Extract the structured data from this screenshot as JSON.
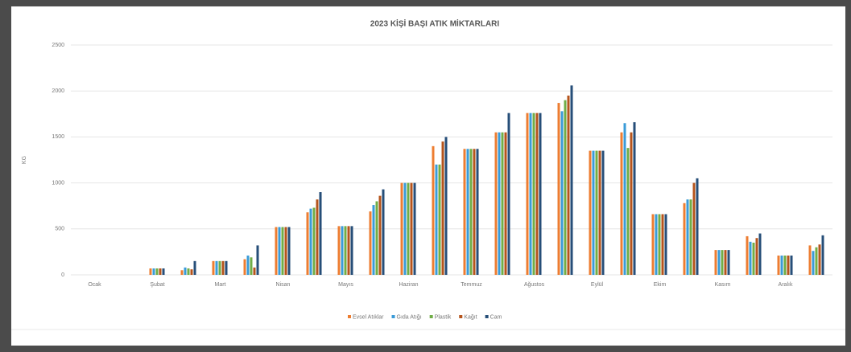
{
  "chart_data": {
    "type": "bar",
    "title": "2023 KİŞİ BAŞI ATIK MİKTARLARI",
    "y_label": "KG",
    "categories": [
      "Ocak",
      null,
      "Şubat",
      null,
      "Mart",
      null,
      "Nisan",
      null,
      "Mayıs",
      null,
      "Haziran",
      null,
      "Temmuz",
      null,
      "Ağustos",
      null,
      "Eylül",
      null,
      "Ekim",
      null,
      "Kasım",
      null,
      "Aralık",
      null
    ],
    "series": [
      {
        "name": "Evsel Atıklar",
        "color": "#ed7d31",
        "values": [
          0,
          0,
          70,
          50,
          150,
          170,
          520,
          680,
          530,
          690,
          1000,
          1400,
          1370,
          1550,
          1760,
          1870,
          1350,
          1550,
          660,
          780,
          270,
          420,
          210,
          320
        ]
      },
      {
        "name": "Gıda Atığı",
        "color": "#3a9bd8",
        "values": [
          0,
          0,
          70,
          80,
          150,
          210,
          520,
          720,
          530,
          760,
          1000,
          1200,
          1370,
          1550,
          1760,
          1780,
          1350,
          1650,
          660,
          820,
          270,
          360,
          210,
          260
        ]
      },
      {
        "name": "Plastik",
        "color": "#70ad47",
        "values": [
          0,
          0,
          70,
          70,
          150,
          190,
          520,
          730,
          530,
          800,
          1000,
          1200,
          1370,
          1550,
          1760,
          1900,
          1350,
          1380,
          660,
          820,
          270,
          350,
          210,
          300
        ]
      },
      {
        "name": "Kağıt",
        "color": "#b5541c",
        "values": [
          0,
          0,
          70,
          60,
          150,
          80,
          520,
          820,
          530,
          860,
          1000,
          1450,
          1370,
          1550,
          1760,
          1950,
          1350,
          1550,
          660,
          1000,
          270,
          400,
          210,
          330
        ]
      },
      {
        "name": "Cam",
        "color": "#264e78",
        "values": [
          0,
          0,
          70,
          150,
          150,
          320,
          520,
          900,
          530,
          930,
          1000,
          1500,
          1370,
          1760,
          1760,
          2060,
          1350,
          1660,
          660,
          1050,
          270,
          450,
          210,
          430
        ]
      }
    ],
    "ylim": [
      0,
      2500
    ],
    "yticks": [
      0,
      500,
      1000,
      1500,
      2000,
      2500
    ],
    "grid": true,
    "legend": "bottom"
  }
}
